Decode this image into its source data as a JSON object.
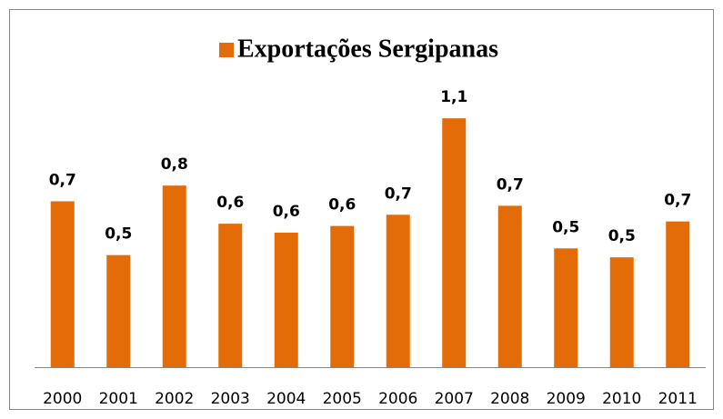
{
  "chart_data": {
    "type": "bar",
    "categories": [
      "2000",
      "2001",
      "2002",
      "2003",
      "2004",
      "2005",
      "2006",
      "2007",
      "2008",
      "2009",
      "2010",
      "2011"
    ],
    "series": [
      {
        "name": "Exportações Sergipanas",
        "color": "#e36c09",
        "values": [
          0.74,
          0.5,
          0.81,
          0.64,
          0.6,
          0.63,
          0.68,
          1.11,
          0.72,
          0.53,
          0.49,
          0.65
        ],
        "value_labels": [
          "0,7",
          "0,5",
          "0,8",
          "0,6",
          "0,6",
          "0,6",
          "0,7",
          "1,1",
          "0,7",
          "0,5",
          "0,5",
          "0,7"
        ]
      }
    ],
    "ylim": [
      0,
      1.2
    ],
    "legend": "top"
  }
}
